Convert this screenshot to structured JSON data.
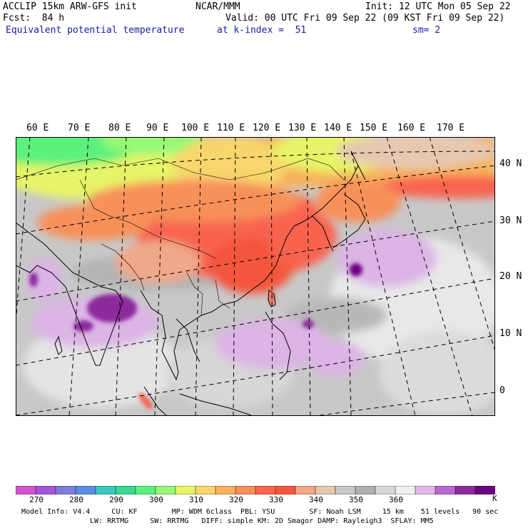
{
  "header": {
    "model": "ACCLIP 15km ARW-GFS init",
    "org": "NCAR/MMM",
    "init": "Init: 12 UTC Mon 05 Sep 22",
    "fcst": "Fcst:  84 h",
    "valid": "Valid: 00 UTC Fri 09 Sep 22 (09 KST Fri 09 Sep 22)",
    "field": "Equivalent potential temperature",
    "level": "at k-index =  51",
    "smooth": "sm= 2"
  },
  "map": {
    "lon_labels": [
      "60 E",
      "70 E",
      "80 E",
      "90 E",
      "100 E",
      "110 E",
      "120 E",
      "130 E",
      "140 E",
      "150 E",
      "160 E",
      "170 E"
    ],
    "lat_labels": [
      "40 N",
      "30 N",
      "20 N",
      "10 N",
      "0"
    ]
  },
  "colorbar": {
    "colors": [
      "#d254d0",
      "#a455dc",
      "#7f7ddc",
      "#5c8de4",
      "#3cc8c0",
      "#38d890",
      "#5cf07c",
      "#98f878",
      "#e6f468",
      "#f8d66c",
      "#f8b25c",
      "#f8905a",
      "#f86450",
      "#f4563c",
      "#f0a888",
      "#e6c8b0",
      "#c8c8c8",
      "#b0b0b0",
      "#d8d8d8",
      "#f0f0f0",
      "#e0b8e8",
      "#b868d0",
      "#8c2c9c",
      "#6c0080"
    ],
    "labels": [
      "270",
      "280",
      "290",
      "300",
      "310",
      "320",
      "330",
      "340",
      "350",
      "360"
    ],
    "unit": "K"
  },
  "footer": {
    "line1": "Model Info: V4.4     CU: KF        MP: WDM 6class  PBL: YSU        SF: Noah LSM     15 km    51 levels   90 sec",
    "line2": "LW: RRTMG     SW: RRTMG   DIFF: simple KM: 2D Smagor DAMP: Rayleigh3  SFLAY: MM5"
  }
}
